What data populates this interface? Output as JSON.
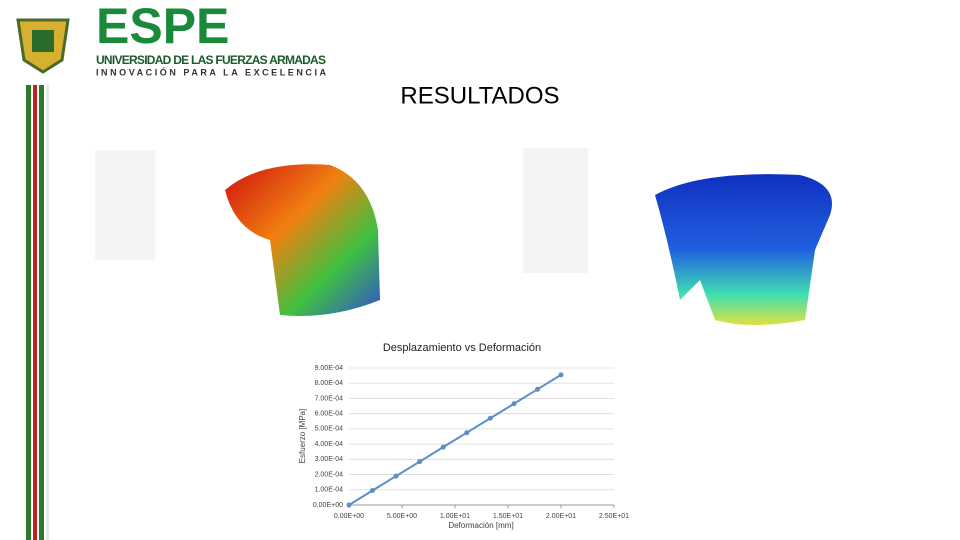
{
  "header": {
    "logo": "ESPE",
    "university": "UNIVERSIDAD DE LAS FUERZAS ARMADAS",
    "motto": "INNOVACIÓN PARA LA EXCELENCIA"
  },
  "slide_title": "RESULTADOS",
  "chart_data": {
    "type": "line",
    "title": "Desplazamiento vs Deformación",
    "x_label": "Deformación [mm]",
    "y_label": "Esfuerzo [MPa]",
    "x": [
      0,
      2.22,
      4.44,
      6.67,
      8.89,
      11.11,
      13.33,
      15.56,
      17.78,
      20
    ],
    "series": [
      {
        "color": "#5b8fc7",
        "values": [
          0,
          9.5e-05,
          0.00019,
          0.000285,
          0.00038,
          0.000475,
          0.00057,
          0.000665,
          0.00076,
          0.000855
        ]
      }
    ],
    "xlim": [
      0,
      25
    ],
    "xticks": [
      {
        "value": 0,
        "label": "0.00E+00"
      },
      {
        "value": 5,
        "label": "5.00E+00"
      },
      {
        "value": 10,
        "label": "1.00E+01"
      },
      {
        "value": 15,
        "label": "1.50E+01"
      },
      {
        "value": 20,
        "label": "2.00E+01"
      },
      {
        "value": 25,
        "label": "2.50E+01"
      }
    ],
    "ylim": [
      0,
      0.0009
    ],
    "yticks": [
      {
        "value": 0,
        "label": "0.00E+00"
      },
      {
        "value": 0.0001,
        "label": "1.00E-04"
      },
      {
        "value": 0.0002,
        "label": "2.00E-04"
      },
      {
        "value": 0.0003,
        "label": "3.00E-04"
      },
      {
        "value": 0.0004,
        "label": "4.00E-04"
      },
      {
        "value": 0.0005,
        "label": "5.00E-04"
      },
      {
        "value": 0.0006,
        "label": "6.00E-04"
      },
      {
        "value": 0.0007,
        "label": "7.00E-04"
      },
      {
        "value": 0.0008,
        "label": "8.00E-04"
      },
      {
        "value": 0.0009,
        "label": "9.00E-04"
      }
    ],
    "grid": true
  }
}
